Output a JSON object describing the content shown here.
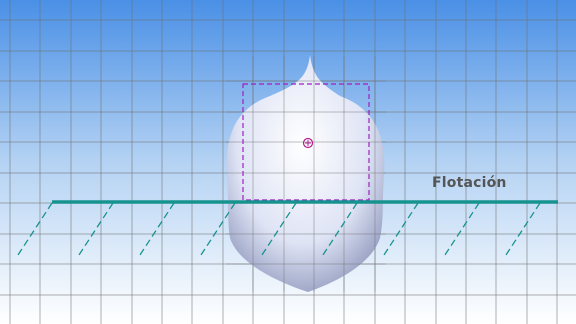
{
  "view": {
    "background_top": "#4a90e6",
    "background_bottom": "#ffffff",
    "grid_color": "#707070"
  },
  "hull": {
    "fill_light": "#ffffff",
    "fill_mid": "#dfe4f5",
    "fill_dark": "#7a83ad",
    "selection_color": "#a020c0",
    "centroid_color": "#b0208c"
  },
  "waterline": {
    "label": "Flotación",
    "label_color": "#555555",
    "color": "#17938f"
  }
}
